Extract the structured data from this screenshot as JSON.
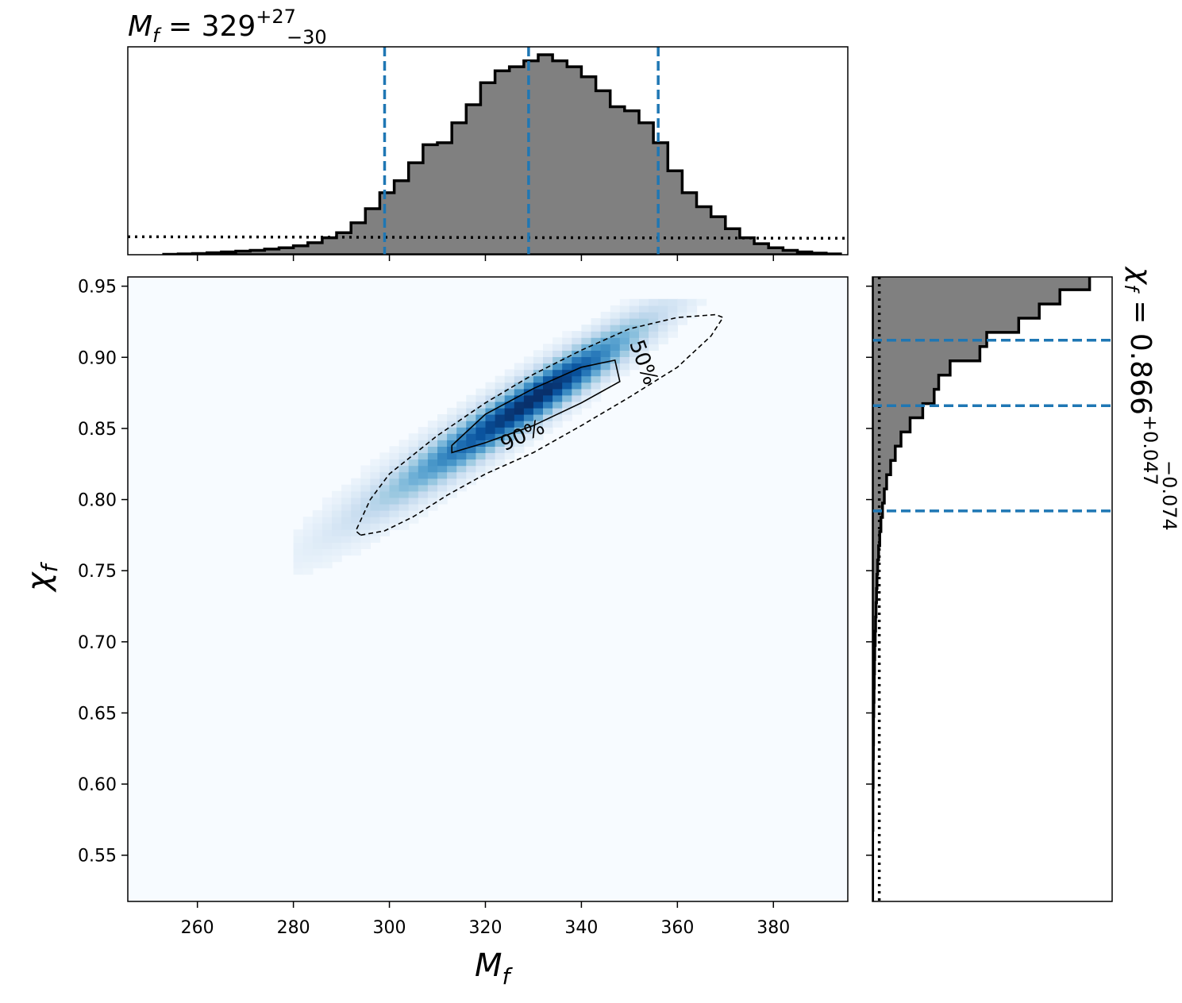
{
  "chart_data": {
    "type": "corner",
    "x_param": {
      "symbol": "M",
      "subscript": "f",
      "median": "329",
      "plus": "+27",
      "minus": "−30",
      "title_eq": " = 329",
      "ticks": [
        "260",
        "280",
        "300",
        "320",
        "340",
        "360",
        "380"
      ],
      "range": [
        245.5,
        395.5
      ],
      "quantile_lines": [
        299,
        329,
        356
      ]
    },
    "y_param": {
      "symbol": "χ",
      "subscript": "f",
      "title_eq": " = 0.866",
      "plus": "+0.047",
      "minus": "−0.074",
      "ticks": [
        "0.55",
        "0.60",
        "0.65",
        "0.70",
        "0.75",
        "0.80",
        "0.85",
        "0.90",
        "0.95"
      ],
      "range": [
        0.5175,
        0.9565
      ],
      "quantile_lines": [
        0.912,
        0.866,
        0.792
      ]
    },
    "top_histogram": {
      "bin_edges_start": 253,
      "bin_width": 3,
      "posterior": [
        0.002,
        0.004,
        0.006,
        0.01,
        0.014,
        0.018,
        0.022,
        0.028,
        0.035,
        0.045,
        0.06,
        0.085,
        0.11,
        0.16,
        0.23,
        0.31,
        0.37,
        0.46,
        0.55,
        0.56,
        0.66,
        0.75,
        0.86,
        0.92,
        0.94,
        0.97,
        1.0,
        0.97,
        0.94,
        0.89,
        0.82,
        0.74,
        0.72,
        0.66,
        0.56,
        0.42,
        0.31,
        0.24,
        0.19,
        0.13,
        0.085,
        0.055,
        0.035,
        0.022,
        0.014,
        0.008,
        0.004
      ],
      "prior_level": 0.09
    },
    "right_histogram": {
      "bin_edges_start": 0.5175,
      "bin_width": 0.01,
      "posterior": [
        0.001,
        0.001,
        0.001,
        0.001,
        0.001,
        0.002,
        0.002,
        0.002,
        0.003,
        0.003,
        0.004,
        0.005,
        0.005,
        0.006,
        0.007,
        0.008,
        0.009,
        0.01,
        0.012,
        0.014,
        0.016,
        0.018,
        0.02,
        0.023,
        0.027,
        0.032,
        0.037,
        0.044,
        0.052,
        0.062,
        0.08,
        0.1,
        0.125,
        0.165,
        0.22,
        0.27,
        0.29,
        0.34,
        0.47,
        0.5,
        0.64,
        0.73,
        0.82,
        0.95,
        1.0,
        0.92,
        0.66,
        0.45,
        0.35,
        0.35,
        0.11,
        0.06
      ],
      "prior_level": 0.03
    },
    "contours": [
      {
        "label": "50%",
        "style": "solid"
      },
      {
        "label": "90%",
        "style": "dashed"
      }
    ],
    "density": {
      "colormap": "Blues",
      "center": [
        331,
        0.873
      ],
      "major_slope_per_unit_x": 0.0022
    },
    "colors": {
      "hist_fill": "#808080",
      "hist_edge": "#000000",
      "quantile_line": "#1f77b4",
      "background": "#f7fbff",
      "density_dark": "#08306b"
    }
  }
}
